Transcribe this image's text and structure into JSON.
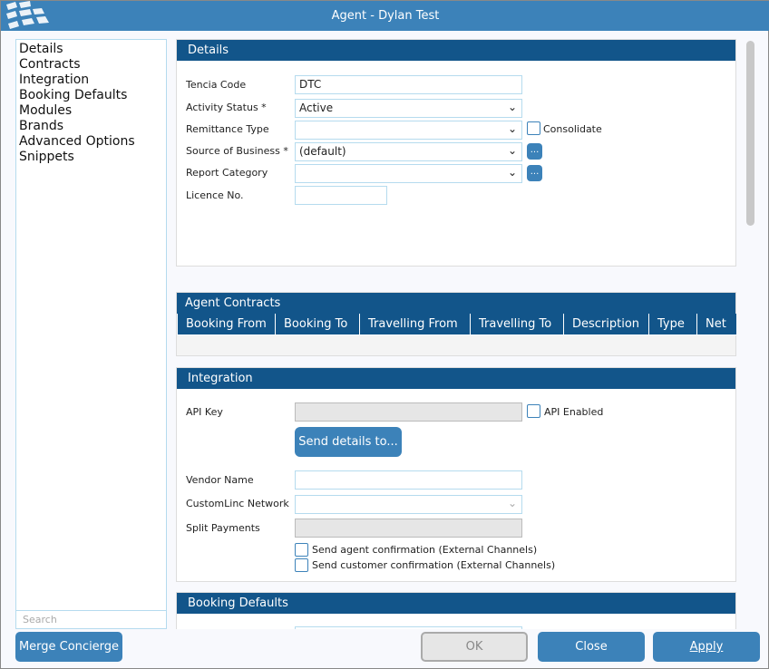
{
  "window": {
    "title": "Agent - Dylan Test"
  },
  "nav": {
    "items": [
      "Details",
      "Contracts",
      "Integration",
      "Booking Defaults",
      "Modules",
      "Brands",
      "Advanced Options",
      "Snippets"
    ],
    "search_placeholder": "Search"
  },
  "details": {
    "header": "Details",
    "tencia_code_label": "Tencia  Code",
    "tencia_code_value": "DTC",
    "activity_status_label": "Activity Status *",
    "activity_status_value": "Active",
    "remittance_type_label": "Remittance Type",
    "remittance_type_value": "",
    "consolidate_label": "Consolidate",
    "source_label": "Source of Business *",
    "source_value": "(default)",
    "report_category_label": "Report Category",
    "report_category_value": "",
    "licence_label": "Licence No.",
    "licence_value": "",
    "more_label": "..."
  },
  "contracts": {
    "header": "Agent Contracts",
    "columns": [
      "Booking From",
      "Booking To",
      "Travelling From",
      "Travelling To",
      "Description",
      "Type",
      "Net"
    ]
  },
  "integration": {
    "header": "Integration",
    "api_key_label": "API Key",
    "api_key_value": "",
    "api_enabled_label": "API Enabled",
    "send_details_label": "Send details to...",
    "vendor_label": "Vendor Name",
    "vendor_value": "",
    "customlinc_label": "CustomLinc Network",
    "customlinc_value": "",
    "split_label": "Split Payments",
    "split_value": "",
    "agent_conf_label": "Send agent confirmation (External Channels)",
    "customer_conf_label": "Send customer confirmation (External Channels)"
  },
  "booking_defaults": {
    "header": "Booking Defaults"
  },
  "buttons": {
    "merge": "Merge Concierge",
    "ok": "OK",
    "close": "Close",
    "apply": "Apply"
  },
  "colors": {
    "title_bar": "#3c82b9",
    "section_header": "#12558a",
    "button": "#3c82b9"
  }
}
